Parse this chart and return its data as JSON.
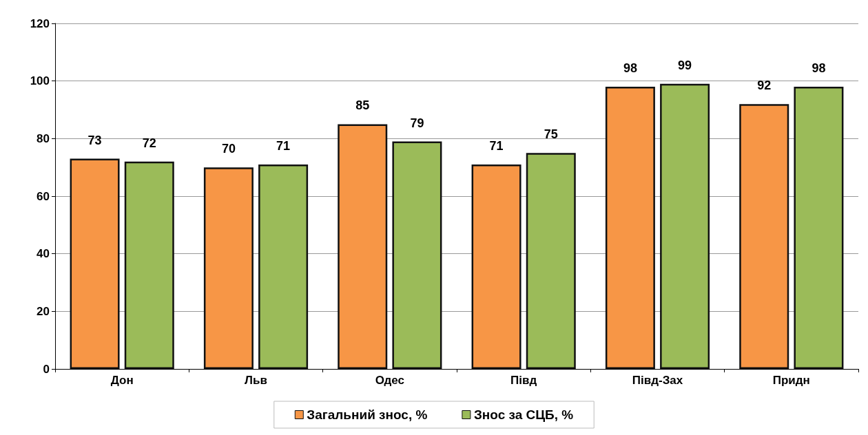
{
  "chart_data": {
    "type": "bar",
    "categories": [
      "Дон",
      "Льв",
      "Одес",
      "Півд",
      "Півд-Зах",
      "Придн"
    ],
    "series": [
      {
        "name": "Загальний знос, %",
        "color": "#f79646",
        "values": [
          73,
          70,
          85,
          71,
          98,
          92
        ]
      },
      {
        "name": "Знос за СЦБ, %",
        "color": "#9bbb59",
        "values": [
          72,
          71,
          79,
          75,
          99,
          98
        ]
      }
    ],
    "ylim": [
      0,
      120
    ],
    "yticks": [
      0,
      20,
      40,
      60,
      80,
      100,
      120
    ],
    "grid": "y",
    "legend": "bottom",
    "data_labels": true
  }
}
